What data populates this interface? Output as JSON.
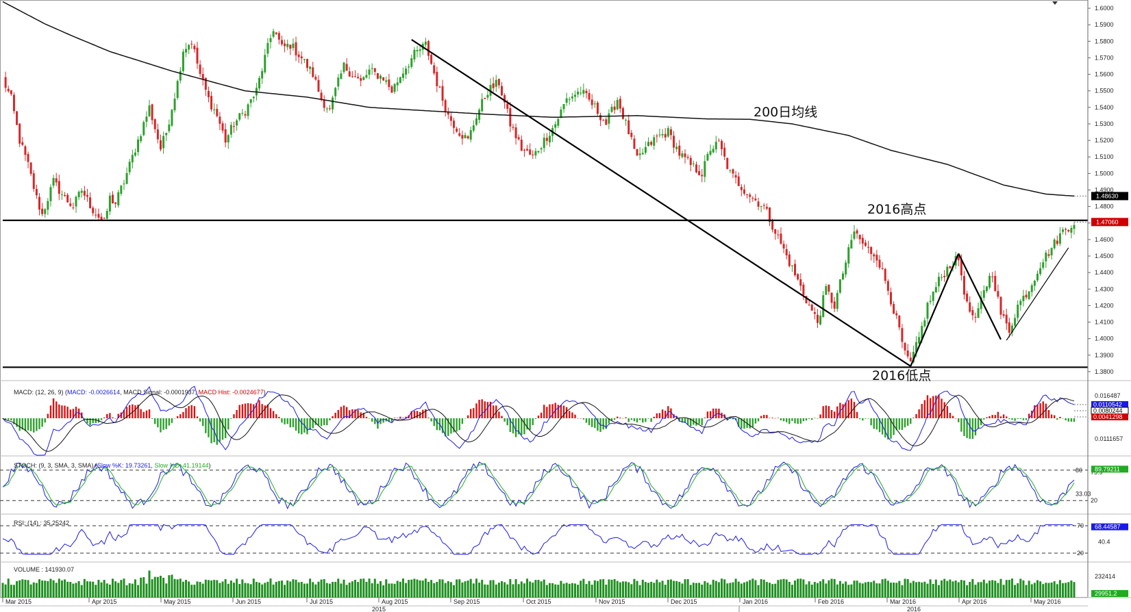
{
  "chart_data": {
    "type": "candlestick",
    "instrument_scale": "price",
    "price_axis": {
      "ylim": [
        1.375,
        1.605
      ],
      "ticks": [
        "1.6000",
        "1.5900",
        "1.5800",
        "1.5700",
        "1.5600",
        "1.5500",
        "1.5400",
        "1.5300",
        "1.5200",
        "1.5100",
        "1.5000",
        "1.4900",
        "1.4800",
        "1.4700",
        "1.4600",
        "1.4500",
        "1.4400",
        "1.4300",
        "1.4200",
        "1.4100",
        "1.4000",
        "1.3900",
        "1.3800"
      ],
      "tags": [
        {
          "text": "1.48630",
          "value": 1.4863,
          "color": "#000000"
        },
        {
          "text": "1.47060",
          "value": 1.4706,
          "color": "#cc0000"
        }
      ]
    },
    "annotations": {
      "ma_label": "200日均线",
      "high_label": "2016高点",
      "low_label": "2016低点",
      "high_level": 1.4716,
      "low_level": 1.3827
    },
    "months": [
      "Mar 2015",
      "Apr 2015",
      "May 2015",
      "Jun 2015",
      "Jul 2015",
      "Aug 2015",
      "Sep 2015",
      "Oct 2015",
      "Nov 2015",
      "Dec 2015",
      "Jan 2016",
      "Feb 2016",
      "Mar 2016",
      "Apr 2016",
      "May 2016"
    ],
    "years": [
      "2015",
      "2016"
    ],
    "trend_lines": [
      {
        "from": [
          145,
          1.581
        ],
        "to": [
          322,
          1.3833
        ]
      },
      {
        "from": [
          322,
          1.3833
        ],
        "to": [
          339,
          1.4515
        ]
      },
      {
        "from": [
          339,
          1.4515
        ],
        "to": [
          354,
          1.3995
        ]
      },
      {
        "from": [
          356,
          1.399
        ],
        "to": [
          378,
          1.455
        ]
      }
    ],
    "ma200_anchors": [
      [
        0,
        1.604
      ],
      [
        15,
        1.5905
      ],
      [
        25,
        1.583
      ],
      [
        38,
        1.5738
      ],
      [
        60,
        1.562
      ],
      [
        86,
        1.55
      ],
      [
        108,
        1.5462
      ],
      [
        130,
        1.54
      ],
      [
        150,
        1.538
      ],
      [
        170,
        1.536
      ],
      [
        195,
        1.534
      ],
      [
        225,
        1.535
      ],
      [
        250,
        1.533
      ],
      [
        265,
        1.5328
      ],
      [
        280,
        1.53
      ],
      [
        300,
        1.523
      ],
      [
        315,
        1.514
      ],
      [
        335,
        1.5055
      ],
      [
        355,
        1.493
      ],
      [
        370,
        1.4875
      ],
      [
        380,
        1.4863
      ]
    ],
    "price_anchors": [
      [
        0,
        1.557
      ],
      [
        3,
        1.545
      ],
      [
        6,
        1.52
      ],
      [
        9,
        1.505
      ],
      [
        12,
        1.485
      ],
      [
        14,
        1.475
      ],
      [
        18,
        1.495
      ],
      [
        22,
        1.485
      ],
      [
        25,
        1.48
      ],
      [
        28,
        1.49
      ],
      [
        32,
        1.478
      ],
      [
        36,
        1.47
      ],
      [
        38,
        1.485
      ],
      [
        40,
        1.482
      ],
      [
        43,
        1.495
      ],
      [
        48,
        1.52
      ],
      [
        52,
        1.54
      ],
      [
        56,
        1.515
      ],
      [
        58,
        1.525
      ],
      [
        62,
        1.555
      ],
      [
        64,
        1.575
      ],
      [
        67,
        1.58
      ],
      [
        70,
        1.56
      ],
      [
        73,
        1.545
      ],
      [
        76,
        1.535
      ],
      [
        79,
        1.52
      ],
      [
        82,
        1.53
      ],
      [
        86,
        1.538
      ],
      [
        90,
        1.55
      ],
      [
        93,
        1.57
      ],
      [
        96,
        1.588
      ],
      [
        99,
        1.576
      ],
      [
        102,
        1.578
      ],
      [
        106,
        1.57
      ],
      [
        110,
        1.56
      ],
      [
        113,
        1.545
      ],
      [
        116,
        1.538
      ],
      [
        118,
        1.55
      ],
      [
        121,
        1.565
      ],
      [
        124,
        1.56
      ],
      [
        127,
        1.555
      ],
      [
        130,
        1.562
      ],
      [
        135,
        1.558
      ],
      [
        138,
        1.55
      ],
      [
        142,
        1.562
      ],
      [
        146,
        1.572
      ],
      [
        150,
        1.578
      ],
      [
        154,
        1.555
      ],
      [
        158,
        1.535
      ],
      [
        162,
        1.525
      ],
      [
        165,
        1.52
      ],
      [
        168,
        1.535
      ],
      [
        172,
        1.55
      ],
      [
        176,
        1.555
      ],
      [
        180,
        1.53
      ],
      [
        184,
        1.515
      ],
      [
        188,
        1.51
      ],
      [
        192,
        1.52
      ],
      [
        196,
        1.53
      ],
      [
        200,
        1.545
      ],
      [
        205,
        1.55
      ],
      [
        210,
        1.54
      ],
      [
        214,
        1.53
      ],
      [
        218,
        1.545
      ],
      [
        222,
        1.525
      ],
      [
        225,
        1.508
      ],
      [
        228,
        1.515
      ],
      [
        232,
        1.522
      ],
      [
        236,
        1.525
      ],
      [
        240,
        1.512
      ],
      [
        244,
        1.505
      ],
      [
        248,
        1.5
      ],
      [
        251,
        1.515
      ],
      [
        254,
        1.518
      ],
      [
        258,
        1.5
      ],
      [
        262,
        1.492
      ],
      [
        266,
        1.485
      ],
      [
        270,
        1.48
      ],
      [
        274,
        1.465
      ],
      [
        278,
        1.45
      ],
      [
        282,
        1.435
      ],
      [
        286,
        1.42
      ],
      [
        289,
        1.41
      ],
      [
        292,
        1.43
      ],
      [
        295,
        1.42
      ],
      [
        298,
        1.44
      ],
      [
        302,
        1.465
      ],
      [
        306,
        1.455
      ],
      [
        310,
        1.45
      ],
      [
        314,
        1.43
      ],
      [
        318,
        1.405
      ],
      [
        320,
        1.39
      ],
      [
        322,
        1.385
      ],
      [
        325,
        1.4
      ],
      [
        328,
        1.42
      ],
      [
        332,
        1.435
      ],
      [
        336,
        1.445
      ],
      [
        339,
        1.448
      ],
      [
        342,
        1.42
      ],
      [
        345,
        1.41
      ],
      [
        348,
        1.43
      ],
      [
        351,
        1.44
      ],
      [
        354,
        1.415
      ],
      [
        357,
        1.405
      ],
      [
        360,
        1.42
      ],
      [
        364,
        1.43
      ],
      [
        368,
        1.445
      ],
      [
        372,
        1.455
      ],
      [
        376,
        1.465
      ],
      [
        380,
        1.4706
      ]
    ],
    "indicators": {
      "macd": {
        "legend": [
          "MACD: (12, 26, 9) (",
          "MACD: -0.0026614",
          ", MACD Signal: -0.0001937",
          ", ",
          "MACD Hist: -0.0024677",
          ")"
        ],
        "ticks": [
          "0.016487",
          "0.0111657"
        ],
        "tags": [
          {
            "text": "0.0110542",
            "color": "#1a1ae6"
          },
          {
            "text": "0.0080244",
            "color": "#000000"
          },
          {
            "text": "0.0041298",
            "color": "#cc0000"
          }
        ]
      },
      "stoch": {
        "legend": [
          "STOCH: (9, 3, SMA, 3, SMA) (",
          "Slow %K: 19.73261",
          ", ",
          "Slow %D: 41.19144",
          ")"
        ],
        "ticks": [
          "80",
          "75.9",
          "33.03",
          "20"
        ],
        "tags": [
          {
            "text": "89.79211",
            "color": "#22aa22"
          }
        ]
      },
      "rsi": {
        "legend": [
          "RSI: (14) : 35.25242"
        ],
        "ticks": [
          "70",
          "40.4",
          "20"
        ],
        "tags": [
          {
            "text": "68.44587",
            "color": "#1a1ae6"
          }
        ]
      },
      "volume": {
        "legend": [
          "VOLUME : 141930.07"
        ],
        "ticks": [
          "232414"
        ],
        "tags": [
          {
            "text": "29951.2",
            "color": "#22aa22"
          }
        ]
      }
    }
  }
}
